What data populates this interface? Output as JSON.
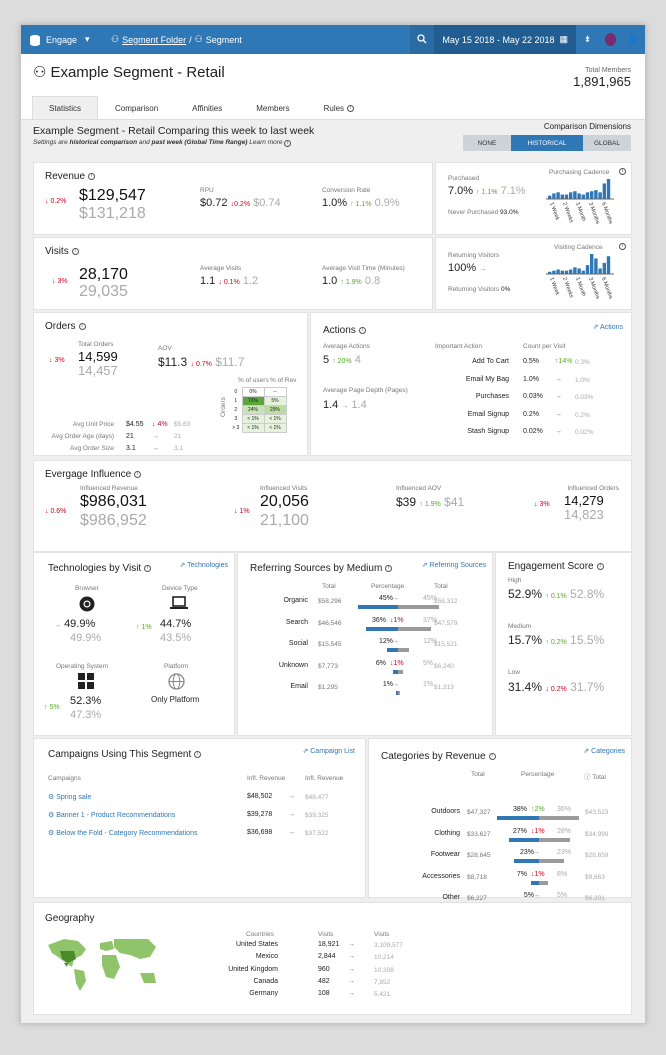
{
  "topbar": {
    "app": "Engage",
    "crumb_folder": "Segment Folder",
    "crumb_sep": "/",
    "crumb_segment": "Segment",
    "date_range": "May 15 2018 - May 22 2018"
  },
  "header": {
    "title": "Example Segment - Retail",
    "total_members_label": "Total Members",
    "total_members": "1,891,965"
  },
  "tabs": [
    "Statistics",
    "Comparison",
    "Affinities",
    "Members",
    "Rules"
  ],
  "comparison": {
    "title": "Example Segment - Retail Comparing this week to last week",
    "sub_a": "Settings are ",
    "sub_b": "historical comparison",
    "sub_c": " and ",
    "sub_d": "past week (Global Time Range)",
    "sub_e": " Learn more",
    "dim_label": "Comparison Dimensions",
    "options": [
      "NONE",
      "HISTORICAL",
      "GLOBAL"
    ],
    "selected": "HISTORICAL"
  },
  "revenue": {
    "title": "Revenue",
    "change": "0.2%",
    "value": "$129,547",
    "prev": "$131,218",
    "rpu_label": "RPU",
    "rpu": "$0.72",
    "rpu_change": "0.2%",
    "rpu_prev": "$0.74",
    "conv_label": "Conversion Rate",
    "conv": "1.0%",
    "conv_change": "1.1%",
    "conv_prev": "0.9%"
  },
  "purchasing": {
    "purchased_label": "Purchased",
    "purchased": "7.0%",
    "change": "1.1%",
    "prev": "7.1%",
    "never_label": "Never Purchased",
    "never": "93.0%",
    "cadence_label": "Purchasing Cadence",
    "cadence_ticks": [
      "1 Week",
      "2 Weeks",
      "1 Month",
      "3 Months",
      "6 Months"
    ],
    "cadence_values": [
      3,
      5,
      6,
      4,
      4,
      6,
      7,
      5,
      4,
      6,
      7,
      8,
      6,
      14,
      18
    ]
  },
  "visits": {
    "title": "Visits",
    "change": "3%",
    "value": "28,170",
    "prev": "29,035",
    "avg_label": "Average Visits",
    "avg": "1.1",
    "avg_change": "0.1%",
    "avg_prev": "1.2",
    "time_label": "Average Visit Time (Minutes)",
    "time": "1.0",
    "time_change": "1.9%",
    "time_prev": "0.8"
  },
  "returning": {
    "label": "Returning Visitors",
    "value": "100%",
    "returning_label": "Returning Visitors",
    "returning": "0%",
    "cadence_label": "Visiting Cadence",
    "cadence_ticks": [
      "1 Week",
      "2 Weeks",
      "1 Month",
      "3 Months",
      "6 Months"
    ],
    "cadence_values": [
      2,
      3,
      4,
      3,
      3,
      4,
      6,
      5,
      3,
      8,
      18,
      14,
      5,
      10,
      16
    ]
  },
  "orders": {
    "title": "Orders",
    "total_label": "Total Orders",
    "change": "3%",
    "value": "14,599",
    "prev": "14,457",
    "aov_label": "AOV",
    "aov": "$11.3",
    "aov_change": "0.7%",
    "aov_prev": "$11.7",
    "rows": [
      {
        "label": "Avg Unit Price",
        "v": "$4.55",
        "c": "4%",
        "p": "$5.63"
      },
      {
        "label": "Avg Order Age (days)",
        "v": "21",
        "c": "",
        "p": "21"
      },
      {
        "label": "Avg Order Size",
        "v": "3.1",
        "c": "",
        "p": "3.1"
      }
    ],
    "tbl_h1": "% of users",
    "tbl_h2": "% of Rev",
    "tbl_axis": "Orders",
    "tbl_rows": [
      {
        "k": "0",
        "a": "0%",
        "b": "--"
      },
      {
        "k": "1",
        "a": "73%",
        "b": "5%"
      },
      {
        "k": "2",
        "a": "24%",
        "b": "29%"
      },
      {
        "k": "3",
        "a": "< 1%",
        "b": "< 1%"
      },
      {
        "k": "> 3",
        "a": "< 1%",
        "b": "< 1%"
      }
    ]
  },
  "actions": {
    "title": "Actions",
    "link": "Actions",
    "avg_label": "Average Actions",
    "avg": "5",
    "avg_change": "20%",
    "avg_prev": "4",
    "depth_label": "Average Page Depth (Pages)",
    "depth": "1.4",
    "depth_prev": "1.4",
    "col1": "Important Action",
    "col2": "Count per Visit",
    "rows": [
      {
        "n": "Add To Cart",
        "v": "0.5%",
        "c": "14%",
        "p": "0.3%"
      },
      {
        "n": "Email My Bag",
        "v": "1.0%",
        "c": "",
        "p": "1.0%"
      },
      {
        "n": "Purchases",
        "v": "0.03%",
        "c": "",
        "p": "0.03%"
      },
      {
        "n": "Email Signup",
        "v": "0.2%",
        "c": "",
        "p": "0.2%"
      },
      {
        "n": "Stash Signup",
        "v": "0.02%",
        "c": "",
        "p": "0.02%"
      }
    ]
  },
  "influence": {
    "title": "Evergage Influence",
    "rev_label": "Influenced Revenue",
    "rev_change": "0.6%",
    "rev": "$986,031",
    "rev_prev": "$986,952",
    "vis_label": "Influenced Visits",
    "vis_change": "1%",
    "vis": "20,056",
    "vis_prev": "21,100",
    "aov_label": "Influenced AOV",
    "aov": "$39",
    "aov_change": "1.9%",
    "aov_prev": "$41",
    "ord_label": "Influenced Orders",
    "ord_change": "3%",
    "ord": "14,279",
    "ord_prev": "14,823"
  },
  "tech": {
    "title": "Technologies by Visit",
    "link": "Technologies",
    "browser_label": "Browser",
    "browser": "49.9%",
    "browser_prev": "49.9%",
    "device_label": "Device Type",
    "device_change": "1%",
    "device": "44.7%",
    "device_prev": "43.5%",
    "os_label": "Operating System",
    "os_change": "5%",
    "os": "52.3%",
    "os_prev": "47.3%",
    "platform_label": "Platform",
    "platform": "Only Platform"
  },
  "referring": {
    "title": "Referring Sources by Medium",
    "link": "Referring Sources",
    "col_total": "Total",
    "col_pct": "Percentage",
    "col_total2": "Total",
    "rows": [
      {
        "n": "Organic",
        "t": "$58,296",
        "p": "45%",
        "c": "",
        "pp": "45%",
        "t2": "$58,312",
        "w": 45,
        "pw": 45
      },
      {
        "n": "Search",
        "t": "$46,546",
        "p": "36%",
        "c": "1%",
        "pp": "37%",
        "t2": "$47,579",
        "w": 36,
        "pw": 37
      },
      {
        "n": "Social",
        "t": "$15,545",
        "p": "12%",
        "c": "",
        "pp": "12%",
        "t2": "$15,521",
        "w": 12,
        "pw": 12
      },
      {
        "n": "Unknown",
        "t": "$7,773",
        "p": "6%",
        "c": "1%",
        "pp": "5%",
        "t2": "$6,240",
        "w": 6,
        "pw": 5
      },
      {
        "n": "Email",
        "t": "$1,295",
        "p": "1%",
        "c": "",
        "pp": "1%",
        "t2": "$1,313",
        "w": 1,
        "pw": 1
      }
    ]
  },
  "engagement": {
    "title": "Engagement Score",
    "high_label": "High",
    "high": "52.9%",
    "high_change": "0.1%",
    "high_prev": "52.8%",
    "med_label": "Medium",
    "med": "15.7%",
    "med_change": "0.2%",
    "med_prev": "15.5%",
    "low_label": "Low",
    "low": "31.4%",
    "low_change": "0.2%",
    "low_prev": "31.7%"
  },
  "campaigns": {
    "title": "Campaigns Using This Segment",
    "link": "Campaign List",
    "col1": "Campaigns",
    "col2": "Infl. Revenue",
    "col3": "Infl. Revenue",
    "rows": [
      {
        "n": "Spring sale",
        "v": "$48,502",
        "p": "$48,477"
      },
      {
        "n": "Banner 1 - Product Recommendations",
        "v": "$39,278",
        "p": "$39,325"
      },
      {
        "n": "Below the Fold - Category Recommendations",
        "v": "$36,698",
        "p": "$37,522"
      }
    ]
  },
  "categories": {
    "title": "Categories by Revenue",
    "link": "Categories",
    "col_total": "Total",
    "col_pct": "Percentage",
    "col_total2": "Total",
    "rows": [
      {
        "n": "Outdoors",
        "t": "$47,327",
        "p": "38%",
        "c": "2%",
        "up": true,
        "pp": "36%",
        "t2": "$43,523",
        "w": 38,
        "pw": 36
      },
      {
        "n": "Clothing",
        "t": "$33,627",
        "p": "27%",
        "c": "1%",
        "up": false,
        "pp": "28%",
        "t2": "$34,999",
        "w": 27,
        "pw": 28
      },
      {
        "n": "Footwear",
        "t": "$28,645",
        "p": "23%",
        "c": "",
        "up": null,
        "pp": "23%",
        "t2": "$28,659",
        "w": 23,
        "pw": 23
      },
      {
        "n": "Accessories",
        "t": "$8,718",
        "p": "7%",
        "c": "1%",
        "up": false,
        "pp": "8%",
        "t2": "$9,663",
        "w": 7,
        "pw": 8
      },
      {
        "n": "Other",
        "t": "$6,227",
        "p": "5%",
        "c": "",
        "up": null,
        "pp": "5%",
        "t2": "$6,201",
        "w": 5,
        "pw": 5
      }
    ]
  },
  "geo": {
    "title": "Geography",
    "col1": "Countries",
    "col2": "Visits",
    "col3": "Visits",
    "rows": [
      {
        "n": "United States",
        "v": "18,921",
        "p": "3,109,577"
      },
      {
        "n": "Mexico",
        "v": "2,844",
        "p": "10,214"
      },
      {
        "n": "United Kingdom",
        "v": "960",
        "p": "10,308"
      },
      {
        "n": "Canada",
        "v": "482",
        "p": "7,852"
      },
      {
        "n": "Germany",
        "v": "108",
        "p": "5,421"
      }
    ]
  }
}
